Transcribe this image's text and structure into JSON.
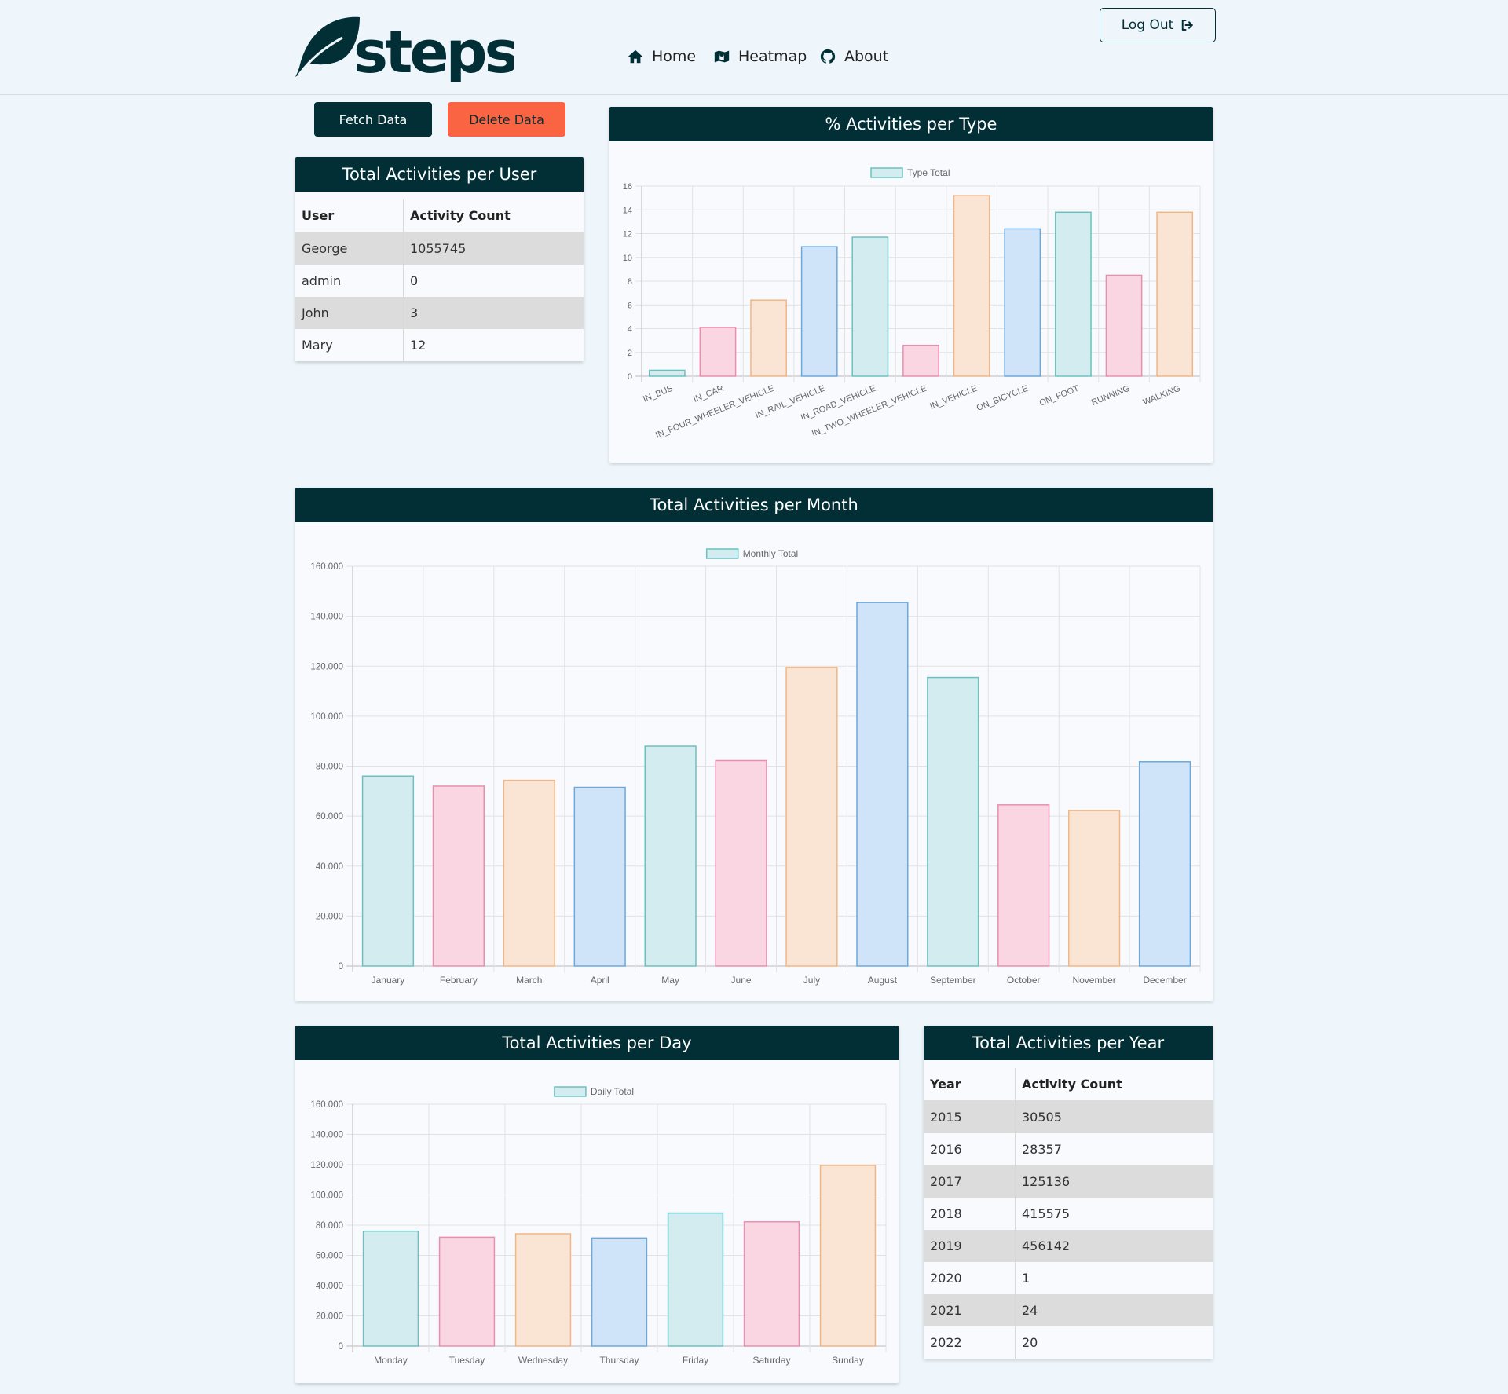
{
  "brand": {
    "name": "steps"
  },
  "nav": {
    "items": [
      {
        "label": "Home",
        "icon": "home-icon"
      },
      {
        "label": "Heatmap",
        "icon": "map-icon"
      },
      {
        "label": "About",
        "icon": "github-icon"
      }
    ],
    "logout_label": "Log Out"
  },
  "actions": {
    "fetch_label": "Fetch Data",
    "delete_label": "Delete Data"
  },
  "colors": {
    "dark": "#022f36",
    "delete": "#fb6443",
    "teal_fill": "#d3ecef",
    "teal_stroke": "#6bc1c1",
    "pink_fill": "#fad6e3",
    "pink_stroke": "#e98fad",
    "orange_fill": "#fae5d5",
    "orange_stroke": "#f2b684",
    "blue_fill": "#cfe4f8",
    "blue_stroke": "#6ba8dc"
  },
  "user_table": {
    "title": "Total Activities per User",
    "headers": [
      "User",
      "Activity Count"
    ],
    "rows": [
      [
        "George",
        "1055745"
      ],
      [
        "admin",
        "0"
      ],
      [
        "John",
        "3"
      ],
      [
        "Mary",
        "12"
      ]
    ]
  },
  "year_table": {
    "title": "Total Activities per Year",
    "headers": [
      "Year",
      "Activity Count"
    ],
    "rows": [
      [
        "2015",
        "30505"
      ],
      [
        "2016",
        "28357"
      ],
      [
        "2017",
        "125136"
      ],
      [
        "2018",
        "415575"
      ],
      [
        "2019",
        "456142"
      ],
      [
        "2020",
        "1"
      ],
      [
        "2021",
        "24"
      ],
      [
        "2022",
        "20"
      ]
    ]
  },
  "chart_data": [
    {
      "id": "type",
      "title": "% Activities per Type",
      "type": "bar",
      "series": [
        {
          "name": "Type Total"
        }
      ],
      "categories": [
        "IN_BUS",
        "IN_CAR",
        "IN_FOUR_WHEELER_VEHICLE",
        "IN_RAIL_VEHICLE",
        "IN_ROAD_VEHICLE",
        "IN_TWO_WHEELER_VEHICLE",
        "IN_VEHICLE",
        "ON_BICYCLE",
        "ON_FOOT",
        "RUNNING",
        "WALKING"
      ],
      "values": [
        0.5,
        4.1,
        6.4,
        10.9,
        11.7,
        2.6,
        15.2,
        12.4,
        13.8,
        8.5,
        13.8
      ],
      "ylim": [
        0,
        16
      ],
      "yticks": [
        "0",
        "2",
        "4",
        "6",
        "8",
        "10",
        "12",
        "14",
        "16"
      ],
      "grid": true,
      "legend": "top-center"
    },
    {
      "id": "month",
      "title": "Total Activities per Month",
      "type": "bar",
      "series": [
        {
          "name": "Monthly Total"
        }
      ],
      "categories": [
        "January",
        "February",
        "March",
        "April",
        "May",
        "June",
        "July",
        "August",
        "September",
        "October",
        "November",
        "December"
      ],
      "values": [
        76000,
        72000,
        74300,
        71500,
        88000,
        82200,
        119500,
        145500,
        115500,
        64500,
        62200,
        81800
      ],
      "ylim": [
        0,
        160000
      ],
      "yticks": [
        "0",
        "20.000",
        "40.000",
        "60.000",
        "80.000",
        "100.000",
        "120.000",
        "140.000",
        "160.000"
      ],
      "grid": true,
      "legend": "top-center"
    },
    {
      "id": "day",
      "title": "Total Activities per Day",
      "type": "bar",
      "series": [
        {
          "name": "Daily Total"
        }
      ],
      "categories": [
        "Monday",
        "Tuesday",
        "Wednesday",
        "Thursday",
        "Friday",
        "Saturday",
        "Sunday"
      ],
      "values": [
        76000,
        72000,
        74300,
        71500,
        88000,
        82200,
        119500
      ],
      "ylim": [
        0,
        160000
      ],
      "yticks": [
        "0",
        "20.000",
        "40.000",
        "60.000",
        "80.000",
        "100.000",
        "120.000",
        "140.000",
        "160.000"
      ],
      "grid": true,
      "legend": "top-center"
    }
  ]
}
